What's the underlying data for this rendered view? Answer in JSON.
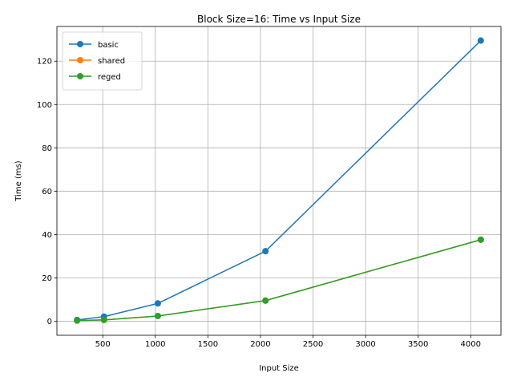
{
  "chart_data": {
    "type": "line",
    "title": "Block Size=16: Time vs Input Size",
    "xlabel": "Input Size",
    "ylabel": "Time (ms)",
    "x": [
      256,
      512,
      1024,
      2048,
      4096
    ],
    "xlim": [
      64,
      4288
    ],
    "ylim": [
      -6.5,
      136
    ],
    "xticks": [
      500,
      1000,
      1500,
      2000,
      2500,
      3000,
      3500,
      4000
    ],
    "yticks": [
      0,
      20,
      40,
      60,
      80,
      100,
      120
    ],
    "grid": true,
    "legend_position": "upper-left",
    "series": [
      {
        "name": "basic",
        "color": "#1f77b4",
        "values": [
          0.6,
          2.1,
          8.2,
          32.3,
          129.5
        ]
      },
      {
        "name": "shared",
        "color": "#ff7f0e",
        "values": [
          0.3,
          0.6,
          2.4,
          9.5,
          37.6
        ]
      },
      {
        "name": "reged",
        "color": "#2ca02c",
        "values": [
          0.3,
          0.6,
          2.4,
          9.5,
          37.6
        ]
      }
    ]
  }
}
